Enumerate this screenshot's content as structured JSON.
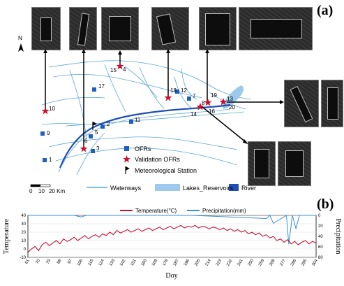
{
  "panel_a": {
    "label": "(a)",
    "north": "N",
    "scalebar": {
      "ticks": [
        "0",
        "10",
        "20 Km"
      ]
    },
    "site_labels": [
      "1",
      "2",
      "3",
      "4",
      "5",
      "6",
      "7",
      "8",
      "9",
      "10",
      "11",
      "12",
      "13",
      "14",
      "15",
      "16",
      "17",
      "18",
      "19",
      "20"
    ],
    "legend": {
      "ofrs": "OFRs",
      "validation": "Validation OFRs",
      "station": "Meteorological  Station",
      "waterways": "Waterways",
      "lakes": "Lakes_Reservoirs",
      "river": "River"
    },
    "colors": {
      "ofr": "#1f5fbf",
      "validation": "#c8102e",
      "waterway": "#5aa7d8",
      "lake": "#9cc9ec",
      "river": "#1f4fb5"
    }
  },
  "panel_b": {
    "label": "(b)",
    "legend_temperature": "Temperature(°C)",
    "legend_precipitation": "Precipitation(mm)",
    "ylabel_left": "Temperature",
    "ylabel_right": "Precipitation",
    "xlabel": "Doy",
    "colors": {
      "temperature": "#c8102e",
      "precipitation": "#3a8fd0"
    }
  },
  "chart_data": {
    "type": "line",
    "xlabel": "Doy",
    "x_ticks": [
      "61",
      "70",
      "79",
      "88",
      "97",
      "106",
      "115",
      "124",
      "133",
      "142",
      "151",
      "160",
      "169",
      "178",
      "187",
      "196",
      "205",
      "214",
      "223",
      "232",
      "241",
      "250",
      "259",
      "268",
      "277",
      "286",
      "295",
      "304"
    ],
    "xlim": [
      61,
      304
    ],
    "left_axis": {
      "label": "Temperature",
      "ylim": [
        -10,
        40
      ],
      "ticks": [
        "-10",
        "0",
        "10",
        "20",
        "30",
        "40"
      ]
    },
    "right_axis": {
      "label": "Precipitation",
      "ylim": [
        80,
        0
      ],
      "inverted": true,
      "ticks": [
        "0",
        "20",
        "40",
        "60",
        "80"
      ]
    },
    "series": [
      {
        "name": "Temperature(°C)",
        "axis": "left",
        "x": [
          61,
          64,
          67,
          70,
          73,
          76,
          79,
          82,
          85,
          88,
          91,
          94,
          97,
          100,
          103,
          106,
          109,
          112,
          115,
          118,
          121,
          124,
          127,
          130,
          133,
          136,
          139,
          142,
          145,
          148,
          151,
          154,
          157,
          160,
          163,
          166,
          169,
          172,
          175,
          178,
          181,
          184,
          187,
          190,
          193,
          196,
          199,
          202,
          205,
          208,
          211,
          214,
          217,
          220,
          223,
          226,
          229,
          232,
          235,
          238,
          241,
          244,
          247,
          250,
          253,
          256,
          259,
          262,
          265,
          268,
          271,
          274,
          277,
          280,
          283,
          286,
          289,
          292,
          295,
          298,
          301,
          304
        ],
        "values": [
          -4,
          0,
          3,
          -2,
          5,
          8,
          4,
          7,
          10,
          6,
          12,
          9,
          11,
          14,
          10,
          13,
          16,
          12,
          15,
          17,
          14,
          18,
          16,
          20,
          17,
          22,
          19,
          21,
          23,
          20,
          22,
          24,
          21,
          23,
          25,
          22,
          24,
          26,
          23,
          25,
          27,
          24,
          26,
          28,
          25,
          27,
          26,
          28,
          25,
          27,
          26,
          24,
          26,
          25,
          23,
          25,
          22,
          24,
          21,
          23,
          20,
          22,
          18,
          20,
          17,
          19,
          15,
          17,
          13,
          15,
          10,
          12,
          8,
          11,
          6,
          9,
          5,
          8,
          10,
          6,
          9,
          7
        ]
      },
      {
        "name": "Precipitation(mm)",
        "axis": "right",
        "x": [
          61,
          100,
          106,
          110,
          200,
          262,
          265,
          268,
          279,
          281,
          284,
          287,
          290,
          304
        ],
        "values": [
          0,
          0,
          3,
          0,
          0,
          6,
          0,
          15,
          0,
          55,
          0,
          25,
          0,
          0
        ]
      }
    ]
  }
}
